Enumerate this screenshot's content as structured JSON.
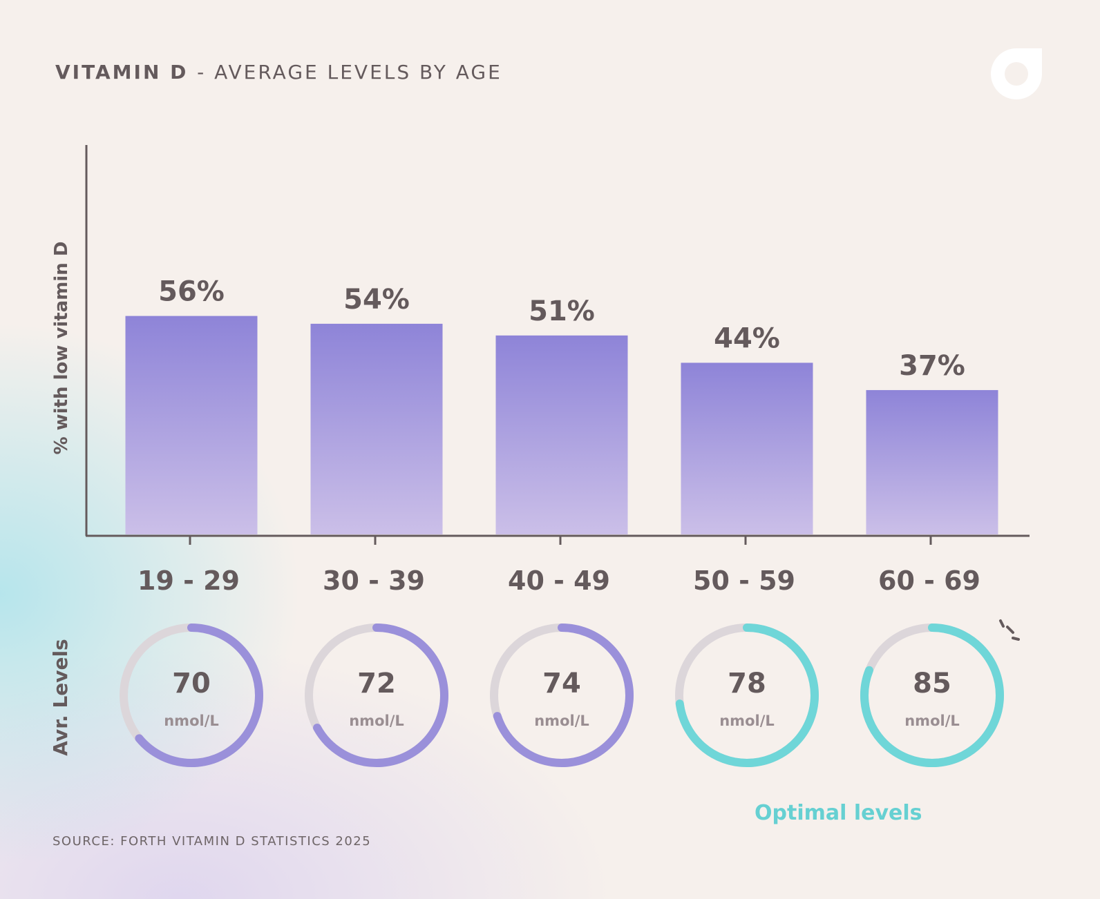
{
  "title": {
    "bold": "VITAMIN D",
    "rest": "- AVERAGE LEVELS BY AGE"
  },
  "chart_data": {
    "type": "bar",
    "title": "VITAMIN D - AVERAGE LEVELS BY AGE",
    "ylabel": "% with low vitamin D",
    "ylim": [
      0,
      100
    ],
    "categories": [
      "19 - 29",
      "30 - 39",
      "40 - 49",
      "50 - 59",
      "60 - 69"
    ],
    "values": [
      56,
      54,
      51,
      44,
      37
    ],
    "value_labels": [
      "56%",
      "54%",
      "51%",
      "44%",
      "37%"
    ],
    "grid": false,
    "avg_levels": {
      "label": "Avr. Levels",
      "unit": "nmol/L",
      "values": [
        70,
        72,
        74,
        78,
        85
      ],
      "fill_fraction": [
        0.64,
        0.67,
        0.7,
        0.73,
        0.81
      ],
      "optimal": [
        false,
        false,
        false,
        true,
        true
      ]
    }
  },
  "optimal_label": "Optimal levels",
  "source": "SOURCE: FORTH VITAMIN D STATISTICS 2025",
  "colors": {
    "bar_top": "#8e84d8",
    "bar_bottom": "#cbbfe8",
    "ring_purple": "#9a90da",
    "ring_teal": "#6fd6d8",
    "ring_track": "#dcd6da",
    "text": "#645a5c",
    "optimal": "#66d0d2"
  }
}
